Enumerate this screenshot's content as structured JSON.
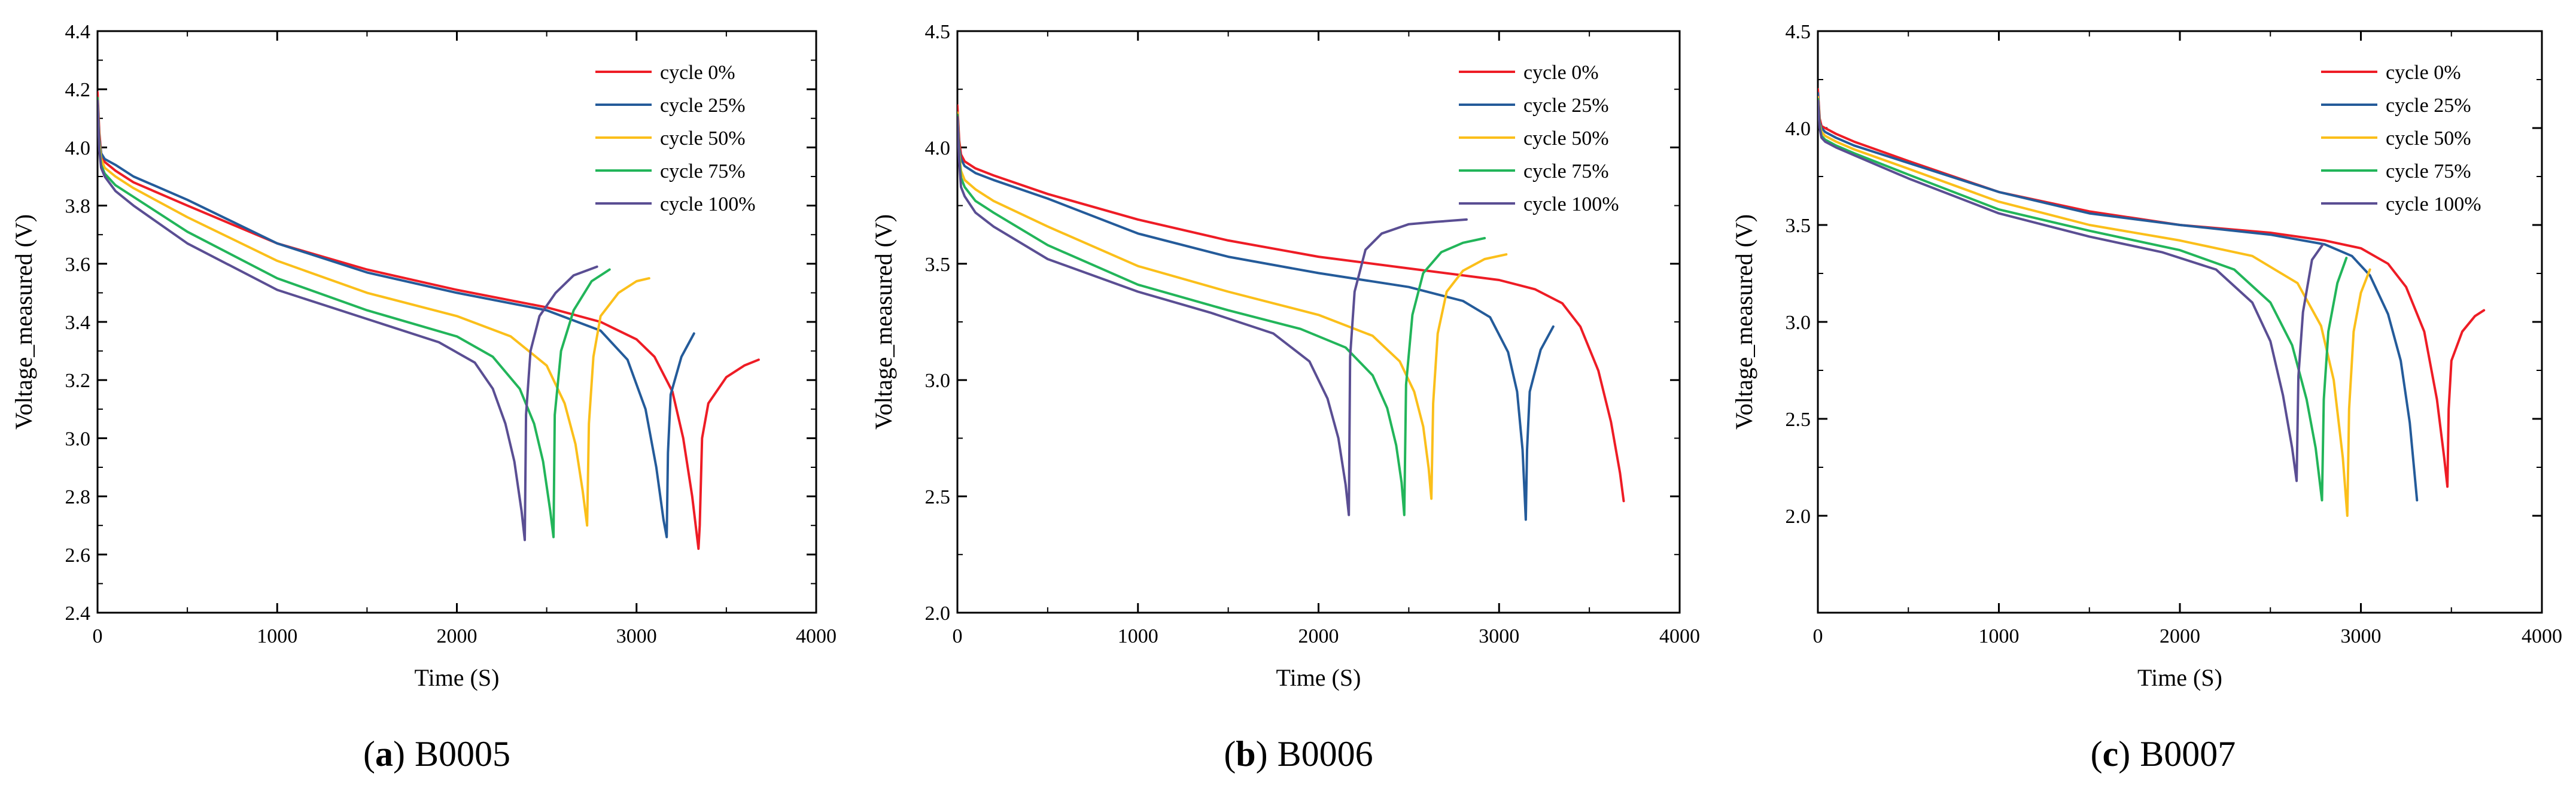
{
  "series_colors": {
    "cycle 0%": "#ee1c25",
    "cycle 25%": "#245b9a",
    "cycle 50%": "#fbbf1a",
    "cycle 75%": "#22b55a",
    "cycle 100%": "#5a4e93"
  },
  "chart_data": [
    {
      "type": "line",
      "caption_letter": "a",
      "caption_text": "B0005",
      "xlabel": "Time (S)",
      "ylabel": "Voltage_measured (V)",
      "xlim": [
        0,
        4000
      ],
      "ylim": [
        2.4,
        4.4
      ],
      "xticks": [
        "0",
        "1000",
        "2000",
        "3000",
        "4000"
      ],
      "yticks": [
        "2.4",
        "2.6",
        "2.8",
        "3.0",
        "3.2",
        "3.4",
        "3.6",
        "3.8",
        "4.0",
        "4.2",
        "4.4"
      ],
      "legend": [
        "cycle 0%",
        "cycle 25%",
        "cycle 50%",
        "cycle 75%",
        "cycle 100%"
      ],
      "legend_position": "top-right",
      "series": [
        {
          "name": "cycle 0%",
          "x": [
            0,
            10,
            20,
            40,
            100,
            200,
            500,
            1000,
            1500,
            2000,
            2500,
            2800,
            3000,
            3100,
            3200,
            3260,
            3310,
            3345,
            3352,
            3365,
            3400,
            3500,
            3600,
            3680
          ],
          "y": [
            4.19,
            4.05,
            3.98,
            3.95,
            3.92,
            3.88,
            3.8,
            3.67,
            3.58,
            3.51,
            3.45,
            3.4,
            3.34,
            3.28,
            3.16,
            3.0,
            2.8,
            2.62,
            2.7,
            3.0,
            3.12,
            3.21,
            3.25,
            3.27
          ]
        },
        {
          "name": "cycle 25%",
          "x": [
            0,
            10,
            20,
            40,
            100,
            200,
            500,
            1000,
            1500,
            2000,
            2500,
            2800,
            2950,
            3050,
            3110,
            3150,
            3168,
            3175,
            3190,
            3250,
            3320
          ],
          "y": [
            4.17,
            4.03,
            3.98,
            3.96,
            3.94,
            3.9,
            3.82,
            3.67,
            3.57,
            3.5,
            3.44,
            3.37,
            3.27,
            3.1,
            2.9,
            2.72,
            2.66,
            2.95,
            3.15,
            3.28,
            3.36
          ]
        },
        {
          "name": "cycle 50%",
          "x": [
            0,
            10,
            20,
            40,
            100,
            200,
            500,
            1000,
            1500,
            2000,
            2300,
            2500,
            2600,
            2660,
            2700,
            2725,
            2735,
            2760,
            2800,
            2900,
            3000,
            3070
          ],
          "y": [
            4.17,
            4.02,
            3.96,
            3.93,
            3.9,
            3.86,
            3.76,
            3.61,
            3.5,
            3.42,
            3.35,
            3.25,
            3.12,
            2.98,
            2.82,
            2.7,
            3.05,
            3.28,
            3.42,
            3.5,
            3.54,
            3.55
          ]
        },
        {
          "name": "cycle 75%",
          "x": [
            0,
            10,
            20,
            40,
            100,
            200,
            500,
            1000,
            1500,
            2000,
            2200,
            2350,
            2430,
            2480,
            2520,
            2538,
            2545,
            2580,
            2650,
            2750,
            2850
          ],
          "y": [
            4.17,
            4.0,
            3.94,
            3.91,
            3.87,
            3.83,
            3.71,
            3.55,
            3.44,
            3.35,
            3.28,
            3.17,
            3.05,
            2.92,
            2.75,
            2.66,
            3.08,
            3.3,
            3.44,
            3.54,
            3.58
          ]
        },
        {
          "name": "cycle 100%",
          "x": [
            0,
            10,
            20,
            40,
            100,
            200,
            500,
            1000,
            1500,
            1900,
            2100,
            2200,
            2270,
            2320,
            2360,
            2378,
            2385,
            2410,
            2460,
            2550,
            2650,
            2780
          ],
          "y": [
            4.16,
            3.99,
            3.93,
            3.9,
            3.85,
            3.8,
            3.67,
            3.51,
            3.41,
            3.33,
            3.26,
            3.17,
            3.05,
            2.92,
            2.75,
            2.65,
            3.08,
            3.3,
            3.42,
            3.5,
            3.56,
            3.59
          ]
        }
      ]
    },
    {
      "type": "line",
      "caption_letter": "b",
      "caption_text": "B0006",
      "xlabel": "Time (S)",
      "ylabel": "Voltage_measured (V)",
      "xlim": [
        0,
        4000
      ],
      "ylim": [
        2.0,
        4.5
      ],
      "xticks": [
        "0",
        "1000",
        "2000",
        "3000",
        "4000"
      ],
      "yticks": [
        "2.0",
        "2.5",
        "3.0",
        "3.5",
        "4.0",
        "4.5"
      ],
      "legend": [
        "cycle 0%",
        "cycle 25%",
        "cycle 50%",
        "cycle 75%",
        "cycle 100%"
      ],
      "legend_position": "top-right",
      "series": [
        {
          "name": "cycle 0%",
          "x": [
            0,
            10,
            20,
            40,
            100,
            200,
            500,
            1000,
            1500,
            2000,
            2500,
            3000,
            3200,
            3350,
            3450,
            3550,
            3620,
            3670,
            3690
          ],
          "y": [
            4.18,
            4.03,
            3.97,
            3.94,
            3.91,
            3.88,
            3.8,
            3.69,
            3.6,
            3.53,
            3.48,
            3.43,
            3.39,
            3.33,
            3.23,
            3.04,
            2.82,
            2.6,
            2.48
          ]
        },
        {
          "name": "cycle 25%",
          "x": [
            0,
            10,
            20,
            40,
            100,
            200,
            500,
            1000,
            1500,
            2000,
            2500,
            2800,
            2950,
            3050,
            3100,
            3130,
            3148,
            3155,
            3170,
            3230,
            3300
          ],
          "y": [
            4.15,
            4.0,
            3.95,
            3.92,
            3.89,
            3.86,
            3.78,
            3.63,
            3.53,
            3.46,
            3.4,
            3.34,
            3.27,
            3.12,
            2.95,
            2.7,
            2.4,
            2.7,
            2.95,
            3.13,
            3.23
          ]
        },
        {
          "name": "cycle 50%",
          "x": [
            0,
            10,
            20,
            40,
            100,
            200,
            500,
            1000,
            1500,
            2000,
            2300,
            2450,
            2530,
            2580,
            2610,
            2625,
            2635,
            2660,
            2710,
            2800,
            2920,
            3040
          ],
          "y": [
            4.15,
            3.98,
            3.9,
            3.86,
            3.82,
            3.77,
            3.66,
            3.49,
            3.38,
            3.28,
            3.19,
            3.08,
            2.95,
            2.8,
            2.62,
            2.49,
            2.9,
            3.2,
            3.38,
            3.47,
            3.52,
            3.54
          ]
        },
        {
          "name": "cycle 75%",
          "x": [
            0,
            10,
            20,
            40,
            100,
            200,
            500,
            1000,
            1500,
            1900,
            2150,
            2300,
            2380,
            2430,
            2460,
            2475,
            2485,
            2520,
            2580,
            2680,
            2800,
            2920
          ],
          "y": [
            4.14,
            3.96,
            3.87,
            3.83,
            3.77,
            3.72,
            3.58,
            3.41,
            3.3,
            3.22,
            3.14,
            3.02,
            2.88,
            2.72,
            2.56,
            2.42,
            2.98,
            3.28,
            3.46,
            3.55,
            3.59,
            3.61
          ]
        },
        {
          "name": "cycle 100%",
          "x": [
            0,
            10,
            20,
            40,
            100,
            200,
            500,
            1000,
            1400,
            1750,
            1950,
            2050,
            2110,
            2150,
            2168,
            2175,
            2200,
            2260,
            2350,
            2500,
            2650,
            2820
          ],
          "y": [
            4.13,
            3.94,
            3.83,
            3.79,
            3.72,
            3.66,
            3.52,
            3.38,
            3.29,
            3.2,
            3.08,
            2.92,
            2.75,
            2.55,
            2.42,
            3.1,
            3.38,
            3.56,
            3.63,
            3.67,
            3.68,
            3.69
          ]
        }
      ]
    },
    {
      "type": "line",
      "caption_letter": "c",
      "caption_text": "B0007",
      "xlabel": "Time (S)",
      "ylabel": "Voltage_measured (V)",
      "xlim": [
        0,
        4000
      ],
      "ylim": [
        1.5,
        4.5
      ],
      "xticks": [
        "0",
        "1000",
        "2000",
        "3000",
        "4000"
      ],
      "yticks": [
        "2.0",
        "2.5",
        "3.0",
        "3.5",
        "4.0",
        "4.5"
      ],
      "legend": [
        "cycle 0%",
        "cycle 25%",
        "cycle 50%",
        "cycle 75%",
        "cycle 100%"
      ],
      "legend_position": "top-right",
      "series": [
        {
          "name": "cycle 0%",
          "x": [
            0,
            10,
            20,
            40,
            100,
            200,
            500,
            1000,
            1500,
            2000,
            2500,
            2800,
            3000,
            3150,
            3250,
            3350,
            3420,
            3460,
            3478,
            3485,
            3500,
            3560,
            3630,
            3680
          ],
          "y": [
            4.2,
            4.05,
            4.01,
            4.0,
            3.97,
            3.93,
            3.83,
            3.67,
            3.57,
            3.5,
            3.46,
            3.42,
            3.38,
            3.3,
            3.18,
            2.95,
            2.6,
            2.3,
            2.15,
            2.55,
            2.8,
            2.95,
            3.03,
            3.06
          ]
        },
        {
          "name": "cycle 25%",
          "x": [
            0,
            10,
            20,
            40,
            100,
            200,
            500,
            1000,
            1500,
            2000,
            2500,
            2800,
            2950,
            3050,
            3150,
            3220,
            3270,
            3300,
            3310
          ],
          "y": [
            4.18,
            4.03,
            4.0,
            3.98,
            3.95,
            3.91,
            3.82,
            3.67,
            3.56,
            3.5,
            3.45,
            3.4,
            3.34,
            3.24,
            3.04,
            2.8,
            2.48,
            2.18,
            2.08
          ]
        },
        {
          "name": "cycle 50%",
          "x": [
            0,
            10,
            20,
            40,
            100,
            200,
            500,
            1000,
            1500,
            2000,
            2400,
            2650,
            2780,
            2850,
            2900,
            2925,
            2935,
            2960,
            3000,
            3050
          ],
          "y": [
            4.16,
            4.02,
            3.98,
            3.96,
            3.93,
            3.89,
            3.79,
            3.62,
            3.5,
            3.42,
            3.34,
            3.2,
            2.98,
            2.7,
            2.3,
            2.0,
            2.55,
            2.95,
            3.15,
            3.27
          ]
        },
        {
          "name": "cycle 75%",
          "x": [
            0,
            10,
            20,
            40,
            100,
            200,
            500,
            1000,
            1500,
            2000,
            2300,
            2500,
            2620,
            2700,
            2750,
            2785,
            2795,
            2820,
            2870,
            2920
          ],
          "y": [
            4.15,
            4.01,
            3.96,
            3.94,
            3.91,
            3.87,
            3.76,
            3.58,
            3.47,
            3.37,
            3.27,
            3.1,
            2.88,
            2.6,
            2.35,
            2.08,
            2.6,
            2.95,
            3.2,
            3.33
          ]
        },
        {
          "name": "cycle 100%",
          "x": [
            0,
            10,
            20,
            40,
            100,
            200,
            500,
            1000,
            1500,
            1900,
            2200,
            2400,
            2500,
            2570,
            2620,
            2645,
            2655,
            2680,
            2730,
            2790
          ],
          "y": [
            4.14,
            4.0,
            3.95,
            3.93,
            3.9,
            3.86,
            3.74,
            3.56,
            3.44,
            3.36,
            3.27,
            3.1,
            2.9,
            2.62,
            2.35,
            2.18,
            2.72,
            3.05,
            3.32,
            3.4
          ]
        }
      ]
    }
  ]
}
